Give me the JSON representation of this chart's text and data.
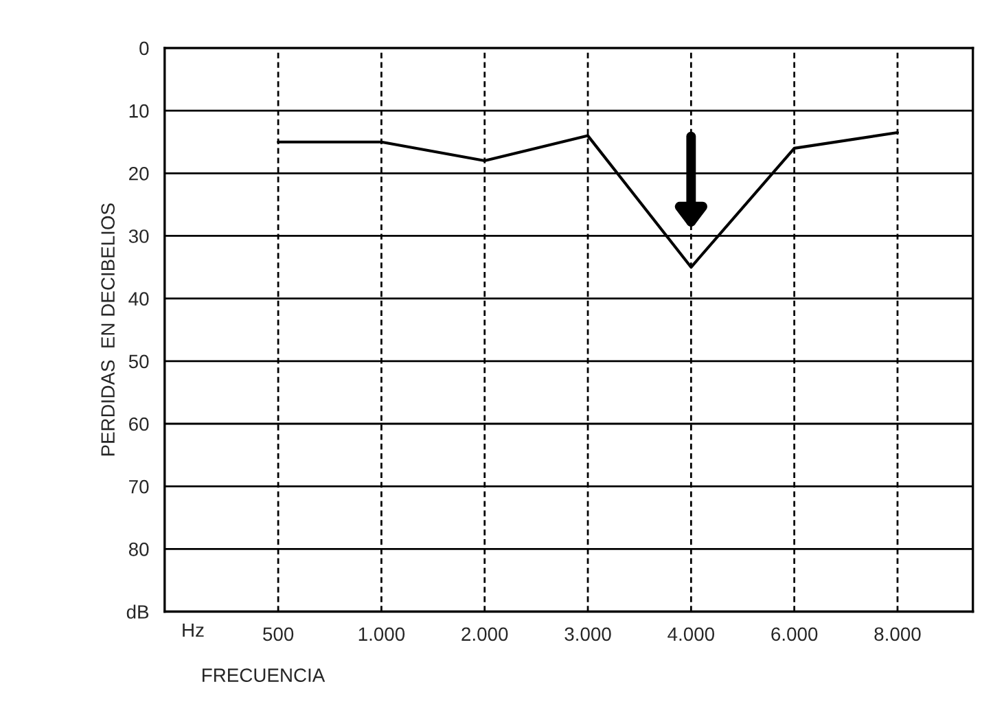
{
  "chart_data": {
    "type": "line",
    "xlabel": "FRECUENCIA",
    "ylabel": "PERDIDAS  EN DECIBELIOS",
    "categories": [
      "500",
      "1.000",
      "2.000",
      "3.000",
      "4.000",
      "6.000",
      "8.000"
    ],
    "series": [
      {
        "color": "#000000",
        "values": [
          15,
          15,
          18,
          14,
          35,
          16,
          13.5
        ]
      }
    ],
    "ylim": [
      90,
      0
    ],
    "yticks": [
      0,
      10,
      20,
      30,
      40,
      50,
      60,
      70,
      80,
      {
        "value": 90,
        "label": "dB"
      }
    ],
    "annotations": [
      "Hz"
    ],
    "grid": true,
    "marker": "none",
    "line_style": "solid"
  }
}
